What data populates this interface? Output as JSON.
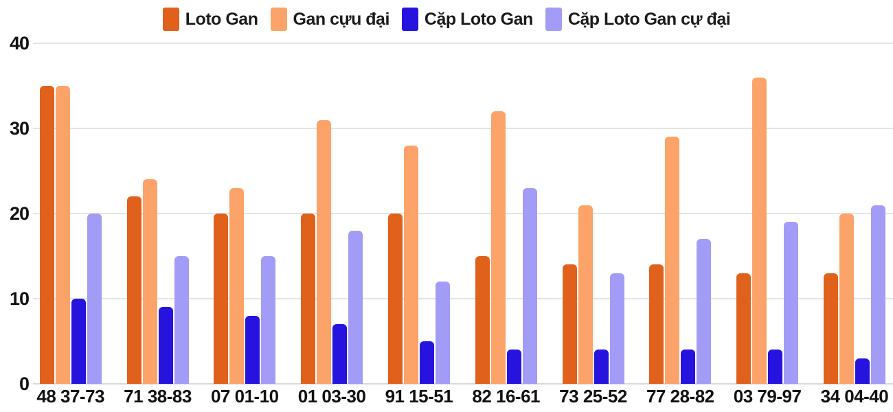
{
  "colors": {
    "background": "#ffffff",
    "grid": "#e4e4e4",
    "baseline": "#d9d9d9",
    "axis_text": "#111111",
    "legend_text": "#1b1b1b"
  },
  "chart_data": {
    "type": "bar",
    "title": "",
    "xlabel": "",
    "ylabel": "",
    "ylim": [
      0,
      40
    ],
    "yticks": [
      0,
      10,
      20,
      30,
      40
    ],
    "grid": true,
    "legend_position": "top",
    "categories": [
      "48 37-73",
      "71 38-83",
      "07 01-10",
      "01 03-30",
      "91 15-51",
      "82 16-61",
      "73 25-52",
      "77 28-82",
      "03 79-97",
      "34 04-40"
    ],
    "series": [
      {
        "name": "Loto Gan",
        "key": "loto-gan",
        "color": "#e0611c",
        "values": [
          35,
          22,
          20,
          20,
          20,
          15,
          14,
          14,
          13,
          13
        ]
      },
      {
        "name": "Gan cựu đại",
        "key": "gan-cuu-dai",
        "color": "#fca36a",
        "values": [
          35,
          24,
          23,
          31,
          28,
          32,
          21,
          29,
          36,
          20
        ]
      },
      {
        "name": "Cặp Loto Gan",
        "key": "cap-loto-gan",
        "color": "#2613dd",
        "values": [
          10,
          9,
          8,
          7,
          5,
          4,
          4,
          4,
          4,
          3
        ]
      },
      {
        "name": "Cặp Loto Gan cự đại",
        "key": "cap-loto-gan-cu-dai",
        "color": "#a39cf6",
        "values": [
          20,
          15,
          15,
          18,
          12,
          23,
          13,
          17,
          19,
          21
        ]
      }
    ]
  }
}
